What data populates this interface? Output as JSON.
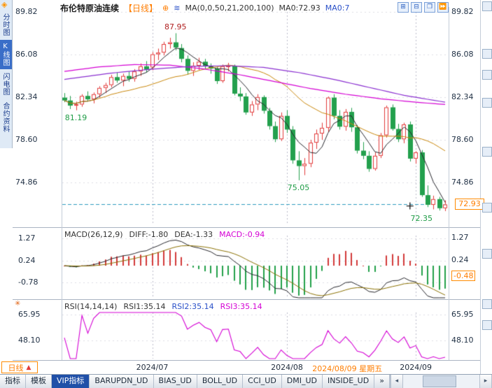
{
  "header": {
    "symbol": "布伦特原油连续",
    "period_tag": "【日线】",
    "ma_settings": "MA(0,0,50,21,200,100)",
    "ma_value_1": "MA0:72.93",
    "ma_value_2": "MA0:7"
  },
  "icons": {
    "diamond": "◈",
    "plus": "⊕",
    "wave": "≋",
    "settings_star": "✳",
    "scroll_left": "◂",
    "scroll_right": "▸"
  },
  "window_controls": [
    {
      "name": "grid-layout-icon",
      "glyph": "⊞"
    },
    {
      "name": "split-horizontal-icon",
      "glyph": "⊟"
    },
    {
      "name": "cascade-windows-icon",
      "glyph": "❐"
    },
    {
      "name": "fast-forward-icon",
      "glyph": "⏩"
    }
  ],
  "sidebar": {
    "items": [
      {
        "label": "分时图",
        "active": false
      },
      {
        "label": "K线图",
        "active": true
      },
      {
        "label": "闪电图",
        "active": false
      },
      {
        "label": "合约资料",
        "active": false
      }
    ]
  },
  "macd_header": {
    "title": "MACD(26,12,9)",
    "diff": "DIFF:-1.80",
    "dea": "DEA:-1.33",
    "macd": "MACD:-0.94"
  },
  "rsi_header": {
    "title": "RSI(14,14,14)",
    "values": [
      {
        "label": "RSI1:35.14",
        "color": "#333333"
      },
      {
        "label": "RSI2:35.14",
        "color": "#2a50c8"
      },
      {
        "label": "RSI3:35.14",
        "color": "#d400d4"
      }
    ]
  },
  "xaxis": {
    "labels": [
      {
        "text": "2024/07",
        "index": 15
      },
      {
        "text": "2024/08",
        "index": 38
      },
      {
        "text": "2024/09",
        "index": 60
      }
    ],
    "highlight": {
      "text": "2024/08/09 星期五",
      "index": 44
    }
  },
  "annotations": [
    {
      "text": "87.95",
      "index": 19,
      "price": 87.95,
      "pos": "above",
      "color": "#b02020"
    },
    {
      "text": "81.19",
      "index": 2,
      "price": 81.19,
      "pos": "below",
      "color": "#1f9c46"
    },
    {
      "text": "75.05",
      "index": 40,
      "price": 75.05,
      "pos": "below",
      "color": "#1f9c46"
    },
    {
      "text": "72.35",
      "index": 61,
      "price": 72.35,
      "pos": "below",
      "color": "#1f9c46"
    }
  ],
  "period_selector": {
    "label": "日线",
    "arrow": "▲"
  },
  "bottom_bar": {
    "tabs": [
      {
        "label": "指标",
        "active": false
      },
      {
        "label": "模板",
        "active": false
      },
      {
        "label": "VIP指标",
        "active": true
      },
      {
        "label": "BARUPDN_UD",
        "active": false
      },
      {
        "label": "BIAS_UD",
        "active": false
      },
      {
        "label": "BOLL_UD",
        "active": false
      },
      {
        "label": "CCI_UD",
        "active": false
      },
      {
        "label": "DMI_UD",
        "active": false
      },
      {
        "label": "INSIDE_UD",
        "active": false
      },
      {
        "label": "»",
        "active": false
      }
    ]
  },
  "colors": {
    "up": "#e23a3a",
    "down": "#23a04d",
    "accent_orange": "#ff7d00",
    "current_price_line": "#2e9bbf",
    "grid_dot": "#dcdce4",
    "month_line": "#b9b9c9"
  },
  "chart_data": [
    {
      "type": "candlestick",
      "title": "布伦特原油连续 日线",
      "yticks": [
        89.82,
        86.08,
        82.34,
        78.6,
        74.86
      ],
      "current_price": 72.93,
      "month_start_indices": [
        15,
        38,
        60
      ],
      "marker": {
        "index": 59,
        "price": 72.8
      },
      "ohlc": [
        [
          82.3,
          82.7,
          81.9,
          82.05
        ],
        [
          82.05,
          82.45,
          81.3,
          81.6
        ],
        [
          81.6,
          81.95,
          81.19,
          81.72
        ],
        [
          81.7,
          82.6,
          81.5,
          82.45
        ],
        [
          82.45,
          82.85,
          81.95,
          82.15
        ],
        [
          82.15,
          82.75,
          81.8,
          82.6
        ],
        [
          82.6,
          83.3,
          82.3,
          83.15
        ],
        [
          83.15,
          83.6,
          82.7,
          83.4
        ],
        [
          83.4,
          84.3,
          83.2,
          84.1
        ],
        [
          84.1,
          84.5,
          83.6,
          83.8
        ],
        [
          83.8,
          84.4,
          83.3,
          84.2
        ],
        [
          84.2,
          84.6,
          83.7,
          83.95
        ],
        [
          83.95,
          84.8,
          83.7,
          84.6
        ],
        [
          84.6,
          85.3,
          84.2,
          85.05
        ],
        [
          85.05,
          85.5,
          84.5,
          84.75
        ],
        [
          84.95,
          86.3,
          84.7,
          86.1
        ],
        [
          86.1,
          86.6,
          85.6,
          86.25
        ],
        [
          86.25,
          87.2,
          86.0,
          87.0
        ],
        [
          87.0,
          87.55,
          86.6,
          87.15
        ],
        [
          87.15,
          87.95,
          86.45,
          86.7
        ],
        [
          86.65,
          87.0,
          85.4,
          85.7
        ],
        [
          85.7,
          86.0,
          84.3,
          84.65
        ],
        [
          84.65,
          85.4,
          84.2,
          85.1
        ],
        [
          85.1,
          85.8,
          84.7,
          85.45
        ],
        [
          85.45,
          85.7,
          84.8,
          85.05
        ],
        [
          85.05,
          85.3,
          84.4,
          84.85
        ],
        [
          84.85,
          85.0,
          83.5,
          83.75
        ],
        [
          83.75,
          85.2,
          83.6,
          85.05
        ],
        [
          85.05,
          85.35,
          84.6,
          85.1
        ],
        [
          85.1,
          85.2,
          82.5,
          82.65
        ],
        [
          82.65,
          83.2,
          82.0,
          82.4
        ],
        [
          82.4,
          82.7,
          80.8,
          81.0
        ],
        [
          81.0,
          82.0,
          80.7,
          81.7
        ],
        [
          81.7,
          82.6,
          81.2,
          82.35
        ],
        [
          82.35,
          82.5,
          80.9,
          81.15
        ],
        [
          81.15,
          81.4,
          79.5,
          79.8
        ],
        [
          79.8,
          80.2,
          78.4,
          78.65
        ],
        [
          78.65,
          81.0,
          78.5,
          80.7
        ],
        [
          80.7,
          81.2,
          79.2,
          79.5
        ],
        [
          79.5,
          79.8,
          76.5,
          76.8
        ],
        [
          76.8,
          77.6,
          75.05,
          76.3
        ],
        [
          76.3,
          77.0,
          75.5,
          76.5
        ],
        [
          76.5,
          78.6,
          76.2,
          78.35
        ],
        [
          78.35,
          79.5,
          77.8,
          79.15
        ],
        [
          79.15,
          80.1,
          78.6,
          79.65
        ],
        [
          79.65,
          82.4,
          79.3,
          82.3
        ],
        [
          82.3,
          82.6,
          80.4,
          80.7
        ],
        [
          80.7,
          81.2,
          79.5,
          79.75
        ],
        [
          79.75,
          81.3,
          79.4,
          81.05
        ],
        [
          81.05,
          81.4,
          79.3,
          79.7
        ],
        [
          79.7,
          79.9,
          77.4,
          77.65
        ],
        [
          77.65,
          78.4,
          76.9,
          77.2
        ],
        [
          77.2,
          77.6,
          75.8,
          76.05
        ],
        [
          76.05,
          77.5,
          75.9,
          77.2
        ],
        [
          77.2,
          79.2,
          77.0,
          79.0
        ],
        [
          79.0,
          81.6,
          78.8,
          81.45
        ],
        [
          81.45,
          81.7,
          79.4,
          79.55
        ],
        [
          79.55,
          80.0,
          78.4,
          78.65
        ],
        [
          78.65,
          80.1,
          78.3,
          79.95
        ],
        [
          79.95,
          80.2,
          76.7,
          76.95
        ],
        [
          76.95,
          77.6,
          76.5,
          77.5
        ],
        [
          77.5,
          77.7,
          73.6,
          73.75
        ],
        [
          73.75,
          74.6,
          72.7,
          72.9
        ],
        [
          72.9,
          73.7,
          72.5,
          73.4
        ],
        [
          73.4,
          73.6,
          72.4,
          72.6
        ],
        [
          72.6,
          73.3,
          72.35,
          72.93
        ]
      ],
      "overlays_sma": [
        {
          "name": "MA-fast",
          "window": 5,
          "color": "#26262c"
        },
        {
          "name": "MA-slow",
          "window": 21,
          "color": "#c8860a"
        }
      ],
      "overlays_points": [
        {
          "name": "MA-long-100",
          "color": "#d400d4",
          "points": [
            [
              0,
              84.6
            ],
            [
              6,
              85.0
            ],
            [
              12,
              85.2
            ],
            [
              18,
              85.15
            ],
            [
              24,
              84.8
            ],
            [
              30,
              84.3
            ],
            [
              36,
              83.7
            ],
            [
              42,
              83.1
            ],
            [
              48,
              82.6
            ],
            [
              54,
              82.2
            ],
            [
              60,
              81.9
            ],
            [
              65,
              81.7
            ]
          ]
        },
        {
          "name": "MA-long-200",
          "color": "#8a2fd0",
          "points": [
            [
              0,
              83.9
            ],
            [
              8,
              84.45
            ],
            [
              15,
              84.8
            ],
            [
              22,
              85.05
            ],
            [
              28,
              85.1
            ],
            [
              34,
              84.95
            ],
            [
              40,
              84.5
            ],
            [
              46,
              83.9
            ],
            [
              52,
              83.2
            ],
            [
              58,
              82.5
            ],
            [
              65,
              81.9
            ]
          ]
        }
      ]
    },
    {
      "type": "macd",
      "params": [
        26,
        12,
        9
      ],
      "displayed": {
        "diff": -1.8,
        "dea": -1.33,
        "macd": -0.94
      },
      "yticks_left": [
        1.27,
        0.24,
        -0.78
      ],
      "yticks_right": [
        {
          "v": 1.27
        },
        {
          "v": 0.24
        },
        {
          "v": -0.48,
          "highlight": true
        }
      ],
      "colors": {
        "diff": "#26262c",
        "dea": "#8a7000",
        "pos": "#d23a3a",
        "neg": "#22a04a"
      }
    },
    {
      "type": "rsi",
      "params": [
        14,
        14,
        14
      ],
      "displayed": {
        "rsi1": 35.14,
        "rsi2": 35.14,
        "rsi3": 35.14
      },
      "yticks": [
        65.95,
        48.1
      ],
      "colors": {
        "line": "#d400d4"
      }
    }
  ]
}
